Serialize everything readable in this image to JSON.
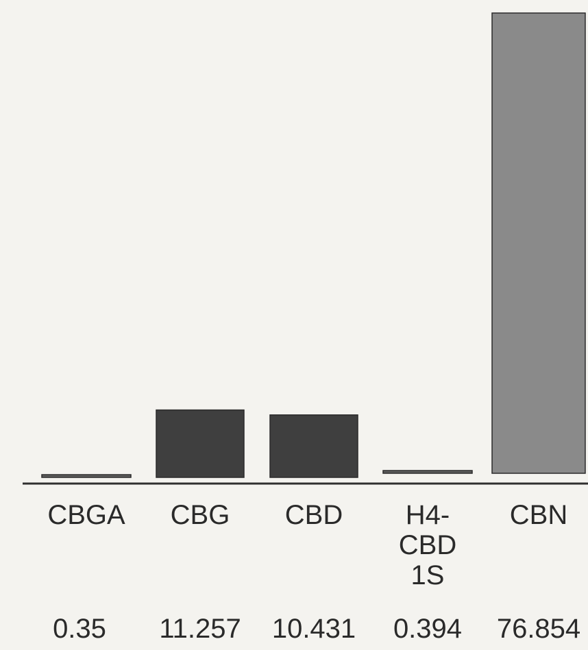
{
  "chart_data": {
    "type": "bar",
    "categories": [
      "CBGA",
      "CBG",
      "CBD",
      "H4-\nCBD\n1S",
      "CBN"
    ],
    "values": [
      0.35,
      11.257,
      10.431,
      0.394,
      76.854
    ],
    "value_labels": [
      "0.35",
      "11.257",
      "10.431",
      "0.394",
      "76.854"
    ],
    "ylim": [
      0,
      76.854
    ],
    "grid": false,
    "legend": "none",
    "colors": [
      "#5e5e5e",
      "#3f3f3f",
      "#3f3f3f",
      "#5e5e5e",
      "#8a8a8a"
    ],
    "axis_color": "#2f2f2f"
  }
}
